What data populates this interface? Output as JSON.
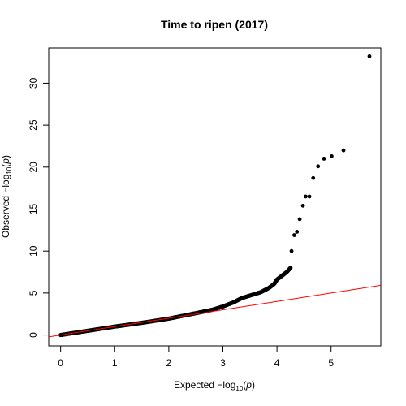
{
  "chart_data": {
    "type": "scatter",
    "title": "Time to ripen (2017)",
    "xlabel": {
      "prefix": "Expected  −log",
      "sub": "10",
      "open": "(",
      "var": "p",
      "close": ")"
    },
    "ylabel": {
      "prefix": "Observed  −log",
      "sub": "10",
      "open": "(",
      "var": "p",
      "close": ")"
    },
    "xlim": [
      -0.22,
      5.92
    ],
    "ylim": [
      -1.3,
      34.2
    ],
    "xticks": [
      0,
      1,
      2,
      3,
      4,
      5
    ],
    "yticks": [
      0,
      5,
      10,
      15,
      20,
      25,
      30
    ],
    "reference_line": {
      "slope": 1,
      "intercept": 0,
      "color": "#ff0000"
    },
    "point_color": "#000000",
    "bulk_curve": [
      [
        0.0,
        0.0
      ],
      [
        0.5,
        0.5
      ],
      [
        1.0,
        1.0
      ],
      [
        1.5,
        1.45
      ],
      [
        2.0,
        1.95
      ],
      [
        2.5,
        2.6
      ],
      [
        2.8,
        3.0
      ],
      [
        3.0,
        3.4
      ],
      [
        3.2,
        3.9
      ],
      [
        3.35,
        4.4
      ],
      [
        3.5,
        4.7
      ],
      [
        3.7,
        5.1
      ],
      [
        3.85,
        5.6
      ],
      [
        3.95,
        6.1
      ],
      [
        4.0,
        6.6
      ],
      [
        4.08,
        7.0
      ],
      [
        4.18,
        7.5
      ],
      [
        4.25,
        8.0
      ]
    ],
    "points": [
      {
        "x": 4.27,
        "y": 10.0
      },
      {
        "x": 4.32,
        "y": 11.9
      },
      {
        "x": 4.37,
        "y": 12.3
      },
      {
        "x": 4.42,
        "y": 13.8
      },
      {
        "x": 4.48,
        "y": 15.4
      },
      {
        "x": 4.53,
        "y": 16.5
      },
      {
        "x": 4.6,
        "y": 16.5
      },
      {
        "x": 4.67,
        "y": 18.7
      },
      {
        "x": 4.76,
        "y": 20.1
      },
      {
        "x": 4.87,
        "y": 21.0
      },
      {
        "x": 5.01,
        "y": 21.3
      },
      {
        "x": 5.23,
        "y": 22.0
      },
      {
        "x": 5.71,
        "y": 33.2
      }
    ]
  }
}
